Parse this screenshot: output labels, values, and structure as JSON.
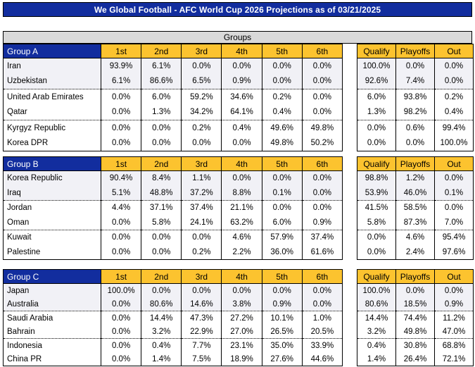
{
  "title": "We Global Football - AFC World Cup 2026 Projections as of 03/21/2025",
  "section_header": "Groups",
  "position_headers": [
    "1st",
    "2nd",
    "3rd",
    "4th",
    "5th",
    "6th"
  ],
  "outcome_headers": [
    "Qualify",
    "Playoffs",
    "Out"
  ],
  "colors": {
    "header_blue": "#122D9E",
    "header_gold": "#FCC32F",
    "section_gray": "#D9D9D9",
    "qualify_zone_shade": "#F1F1F6"
  },
  "groups": [
    {
      "name": "Group A",
      "teams": [
        {
          "team": "Iran",
          "positions": [
            "93.9%",
            "6.1%",
            "0.0%",
            "0.0%",
            "0.0%",
            "0.0%"
          ],
          "outcomes": [
            "100.0%",
            "0.0%",
            "0.0%"
          ]
        },
        {
          "team": "Uzbekistan",
          "positions": [
            "6.1%",
            "86.6%",
            "6.5%",
            "0.9%",
            "0.0%",
            "0.0%"
          ],
          "outcomes": [
            "92.6%",
            "7.4%",
            "0.0%"
          ]
        },
        {
          "team": "United Arab Emirates",
          "positions": [
            "0.0%",
            "6.0%",
            "59.2%",
            "34.6%",
            "0.2%",
            "0.0%"
          ],
          "outcomes": [
            "6.0%",
            "93.8%",
            "0.2%"
          ]
        },
        {
          "team": "Qatar",
          "positions": [
            "0.0%",
            "1.3%",
            "34.2%",
            "64.1%",
            "0.4%",
            "0.0%"
          ],
          "outcomes": [
            "1.3%",
            "98.2%",
            "0.4%"
          ]
        },
        {
          "team": "Kyrgyz Republic",
          "positions": [
            "0.0%",
            "0.0%",
            "0.2%",
            "0.4%",
            "49.6%",
            "49.8%"
          ],
          "outcomes": [
            "0.0%",
            "0.6%",
            "99.4%"
          ]
        },
        {
          "team": "Korea DPR",
          "positions": [
            "0.0%",
            "0.0%",
            "0.0%",
            "0.0%",
            "49.8%",
            "50.2%"
          ],
          "outcomes": [
            "0.0%",
            "0.0%",
            "100.0%"
          ]
        }
      ]
    },
    {
      "name": "Group B",
      "teams": [
        {
          "team": "Korea Republic",
          "positions": [
            "90.4%",
            "8.4%",
            "1.1%",
            "0.0%",
            "0.0%",
            "0.0%"
          ],
          "outcomes": [
            "98.8%",
            "1.2%",
            "0.0%"
          ]
        },
        {
          "team": "Iraq",
          "positions": [
            "5.1%",
            "48.8%",
            "37.2%",
            "8.8%",
            "0.1%",
            "0.0%"
          ],
          "outcomes": [
            "53.9%",
            "46.0%",
            "0.1%"
          ]
        },
        {
          "team": "Jordan",
          "positions": [
            "4.4%",
            "37.1%",
            "37.4%",
            "21.1%",
            "0.0%",
            "0.0%"
          ],
          "outcomes": [
            "41.5%",
            "58.5%",
            "0.0%"
          ]
        },
        {
          "team": "Oman",
          "positions": [
            "0.0%",
            "5.8%",
            "24.1%",
            "63.2%",
            "6.0%",
            "0.9%"
          ],
          "outcomes": [
            "5.8%",
            "87.3%",
            "7.0%"
          ]
        },
        {
          "team": "Kuwait",
          "positions": [
            "0.0%",
            "0.0%",
            "0.0%",
            "4.6%",
            "57.9%",
            "37.4%"
          ],
          "outcomes": [
            "0.0%",
            "4.6%",
            "95.4%"
          ]
        },
        {
          "team": "Palestine",
          "positions": [
            "0.0%",
            "0.0%",
            "0.2%",
            "2.2%",
            "36.0%",
            "61.6%"
          ],
          "outcomes": [
            "0.0%",
            "2.4%",
            "97.6%"
          ]
        }
      ]
    },
    {
      "name": "Group C",
      "teams": [
        {
          "team": "Japan",
          "positions": [
            "100.0%",
            "0.0%",
            "0.0%",
            "0.0%",
            "0.0%",
            "0.0%"
          ],
          "outcomes": [
            "100.0%",
            "0.0%",
            "0.0%"
          ]
        },
        {
          "team": "Australia",
          "positions": [
            "0.0%",
            "80.6%",
            "14.6%",
            "3.8%",
            "0.9%",
            "0.0%"
          ],
          "outcomes": [
            "80.6%",
            "18.5%",
            "0.9%"
          ]
        },
        {
          "team": "Saudi Arabia",
          "positions": [
            "0.0%",
            "14.4%",
            "47.3%",
            "27.2%",
            "10.1%",
            "1.0%"
          ],
          "outcomes": [
            "14.4%",
            "74.4%",
            "11.2%"
          ]
        },
        {
          "team": "Bahrain",
          "positions": [
            "0.0%",
            "3.2%",
            "22.9%",
            "27.0%",
            "26.5%",
            "20.5%"
          ],
          "outcomes": [
            "3.2%",
            "49.8%",
            "47.0%"
          ]
        },
        {
          "team": "Indonesia",
          "positions": [
            "0.0%",
            "0.4%",
            "7.7%",
            "23.1%",
            "35.0%",
            "33.9%"
          ],
          "outcomes": [
            "0.4%",
            "30.8%",
            "68.8%"
          ]
        },
        {
          "team": "China PR",
          "positions": [
            "0.0%",
            "1.4%",
            "7.5%",
            "18.9%",
            "27.6%",
            "44.6%"
          ],
          "outcomes": [
            "1.4%",
            "26.4%",
            "72.1%"
          ]
        }
      ]
    }
  ]
}
